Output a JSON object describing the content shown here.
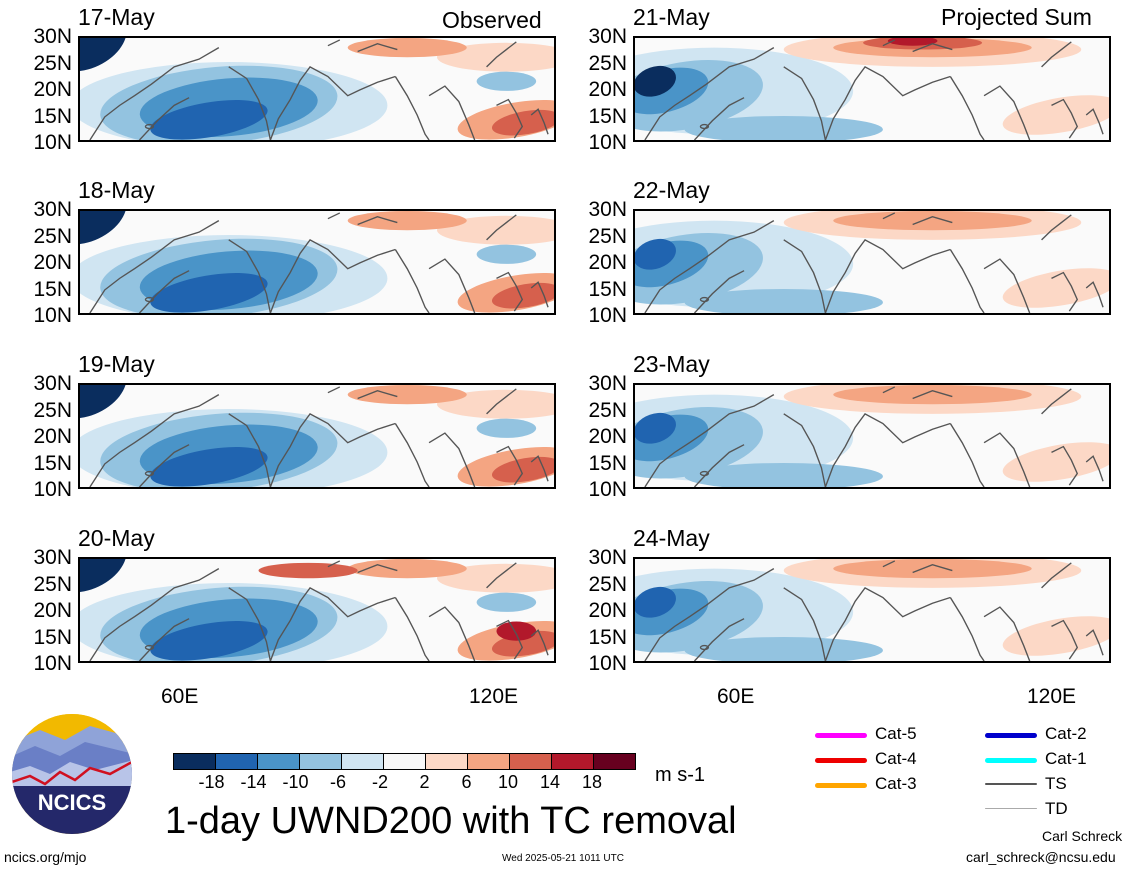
{
  "columns": {
    "left": "Observed",
    "right": "Projected Sum"
  },
  "panels_left": [
    "17-May",
    "18-May",
    "19-May",
    "20-May"
  ],
  "panels_right": [
    "21-May",
    "22-May",
    "23-May",
    "24-May"
  ],
  "lat_labels": [
    "30N",
    "25N",
    "20N",
    "15N",
    "10N"
  ],
  "lon_labels": [
    "60E",
    "120E"
  ],
  "colorbar": {
    "colors": [
      "#0a2d5e",
      "#2064b0",
      "#4a94c8",
      "#93c3e0",
      "#d0e5f2",
      "#f7f7f7",
      "#fcd8c6",
      "#f4a582",
      "#d6604d",
      "#b2182b",
      "#67001f"
    ],
    "labels": [
      "-18",
      "-14",
      "-10",
      "-6",
      "-2",
      "2",
      "6",
      "10",
      "14",
      "18"
    ],
    "units": "m s-1"
  },
  "title": "1-day UWND200 with TC removal",
  "logo_text": "NCICS",
  "footer": {
    "left": "ncics.org/mjo",
    "center": "Wed 2025-05-21 1011 UTC",
    "author": "Carl Schreck",
    "email": "carl_schreck@ncsu.edu"
  },
  "tc_legend": [
    {
      "label": "Cat-5",
      "color": "#ff00ff"
    },
    {
      "label": "Cat-4",
      "color": "#ee0000"
    },
    {
      "label": "Cat-3",
      "color": "#ffa500"
    },
    {
      "label": "Cat-2",
      "color": "#0000cc"
    },
    {
      "label": "Cat-1",
      "color": "#00ffff"
    },
    {
      "label": "TS",
      "color": "#555555"
    },
    {
      "label": "TD",
      "color": "#aaaaaa"
    }
  ]
}
